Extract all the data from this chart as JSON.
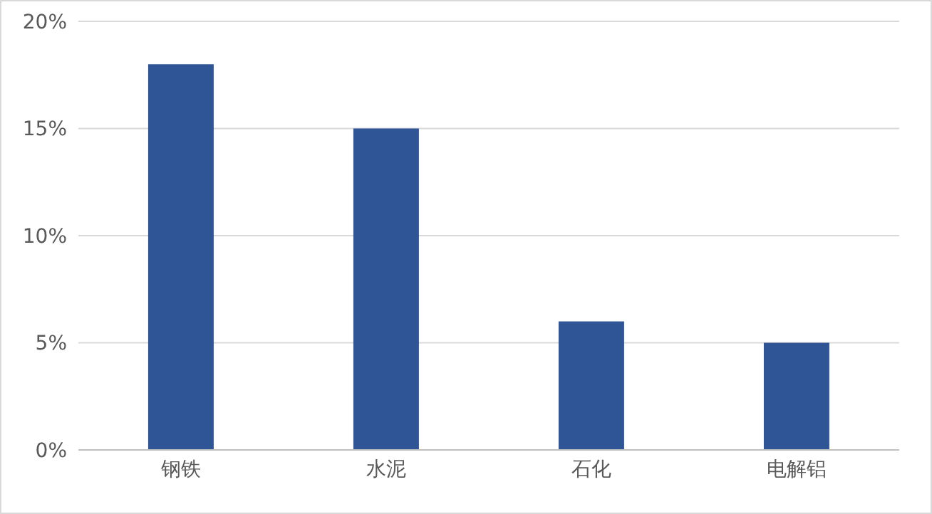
{
  "chart_data": {
    "type": "bar",
    "categories": [
      "钢铁",
      "水泥",
      "石化",
      "电解铝"
    ],
    "values": [
      18,
      15,
      6,
      5
    ],
    "color": "#2f5597",
    "ylim": [
      0,
      20
    ],
    "yticks": [
      {
        "value": 0,
        "label": "0%"
      },
      {
        "value": 5,
        "label": "5%"
      },
      {
        "value": 10,
        "label": "10%"
      },
      {
        "value": 15,
        "label": "15%"
      },
      {
        "value": 20,
        "label": "20%"
      }
    ],
    "grid": "y"
  }
}
